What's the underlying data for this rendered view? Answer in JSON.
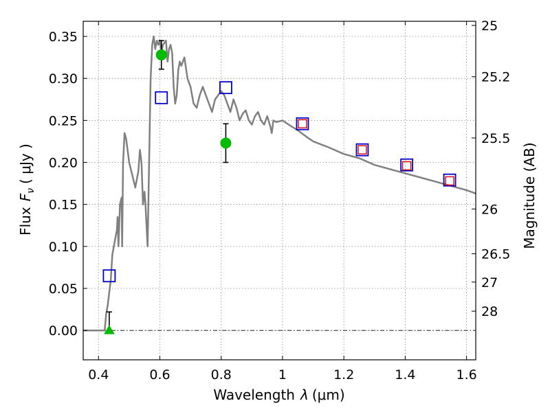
{
  "chart_data": {
    "type": "scatter",
    "xlabel": "Wavelength",
    "xlabel_symbol": "λ",
    "xlabel_unit": "(μm)",
    "ylabel": "Flux",
    "ylabel_symbol": "F",
    "ylabel_subscript": "ν",
    "ylabel_unit": "( μJy )",
    "y2label": "Magnitude (AB)",
    "xlim": [
      0.35,
      1.63
    ],
    "ylim": [
      -0.035,
      0.368
    ],
    "x_ticks": [
      0.4,
      0.6,
      0.8,
      1.0,
      1.2,
      1.4,
      1.6
    ],
    "x_tick_labels": [
      "0.4",
      "0.6",
      "0.8",
      "1",
      "1.2",
      "1.4",
      "1.6"
    ],
    "y_ticks": [
      0.0,
      0.05,
      0.1,
      0.15,
      0.2,
      0.25,
      0.3,
      0.35
    ],
    "y_tick_labels": [
      "0.00",
      "0.05",
      "0.10",
      "0.15",
      "0.20",
      "0.25",
      "0.30",
      "0.35"
    ],
    "y2_ticks": [
      25,
      25.2,
      25.5,
      26,
      26.5,
      27,
      28
    ],
    "y2_tick_labels": [
      "25",
      "25.2",
      "25.5",
      "26",
      "26.5",
      "27",
      "28"
    ],
    "grid": true,
    "colors": {
      "model": "#808080",
      "observed": "#00bb00",
      "model_bands": "#0000cc",
      "predicted": "#dd0000"
    },
    "series": [
      {
        "name": "model_spectrum",
        "style": "line",
        "x": [
          0.35,
          0.42,
          0.425,
          0.43,
          0.44,
          0.445,
          0.45,
          0.46,
          0.462,
          0.465,
          0.47,
          0.475,
          0.477,
          0.48,
          0.485,
          0.49,
          0.5,
          0.51,
          0.52,
          0.53,
          0.535,
          0.54,
          0.545,
          0.55,
          0.553,
          0.56,
          0.565,
          0.57,
          0.575,
          0.58,
          0.585,
          0.59,
          0.595,
          0.6,
          0.605,
          0.61,
          0.62,
          0.625,
          0.63,
          0.635,
          0.64,
          0.645,
          0.65,
          0.655,
          0.66,
          0.665,
          0.67,
          0.68,
          0.69,
          0.7,
          0.71,
          0.72,
          0.73,
          0.74,
          0.75,
          0.76,
          0.77,
          0.78,
          0.79,
          0.8,
          0.81,
          0.82,
          0.83,
          0.84,
          0.85,
          0.86,
          0.87,
          0.88,
          0.89,
          0.9,
          0.91,
          0.92,
          0.93,
          0.94,
          0.95,
          0.96,
          0.965,
          0.97,
          0.98,
          1.0,
          1.02,
          1.05,
          1.08,
          1.1,
          1.15,
          1.2,
          1.25,
          1.3,
          1.35,
          1.4,
          1.45,
          1.5,
          1.55,
          1.6,
          1.63
        ],
        "y": [
          0.0,
          0.0,
          0.02,
          0.03,
          0.06,
          0.09,
          0.1,
          0.12,
          0.135,
          0.1,
          0.15,
          0.158,
          0.1,
          0.2,
          0.235,
          0.228,
          0.2,
          0.185,
          0.17,
          0.19,
          0.215,
          0.2,
          0.15,
          0.165,
          0.15,
          0.1,
          0.2,
          0.3,
          0.34,
          0.35,
          0.335,
          0.345,
          0.34,
          0.345,
          0.33,
          0.34,
          0.345,
          0.32,
          0.335,
          0.34,
          0.33,
          0.29,
          0.27,
          0.28,
          0.31,
          0.32,
          0.315,
          0.325,
          0.3,
          0.29,
          0.27,
          0.265,
          0.28,
          0.29,
          0.28,
          0.27,
          0.26,
          0.275,
          0.28,
          0.285,
          0.28,
          0.27,
          0.26,
          0.275,
          0.265,
          0.25,
          0.258,
          0.262,
          0.25,
          0.245,
          0.255,
          0.26,
          0.25,
          0.245,
          0.255,
          0.243,
          0.235,
          0.25,
          0.248,
          0.25,
          0.245,
          0.238,
          0.23,
          0.225,
          0.218,
          0.21,
          0.205,
          0.197,
          0.192,
          0.187,
          0.182,
          0.177,
          0.172,
          0.167,
          0.163
        ]
      },
      {
        "name": "observed_flux",
        "style": "circle",
        "x": [
          0.605,
          0.815
        ],
        "y": [
          0.328,
          0.223
        ],
        "yerr": [
          0.017,
          0.023
        ]
      },
      {
        "name": "observed_upper_limit",
        "style": "triangle",
        "x": [
          0.435
        ],
        "y": [
          0.0
        ],
        "yerr_high": [
          0.022
        ]
      },
      {
        "name": "model_band_flux",
        "style": "open-square",
        "x": [
          0.435,
          0.605,
          0.815,
          1.065,
          1.26,
          1.405,
          1.545
        ],
        "y": [
          0.065,
          0.277,
          0.289,
          0.246,
          0.215,
          0.197,
          0.179
        ]
      },
      {
        "name": "predicted_band_flux",
        "style": "open-square-small",
        "x": [
          1.065,
          1.26,
          1.405,
          1.545
        ],
        "y": [
          0.246,
          0.215,
          0.196,
          0.178
        ]
      }
    ]
  }
}
